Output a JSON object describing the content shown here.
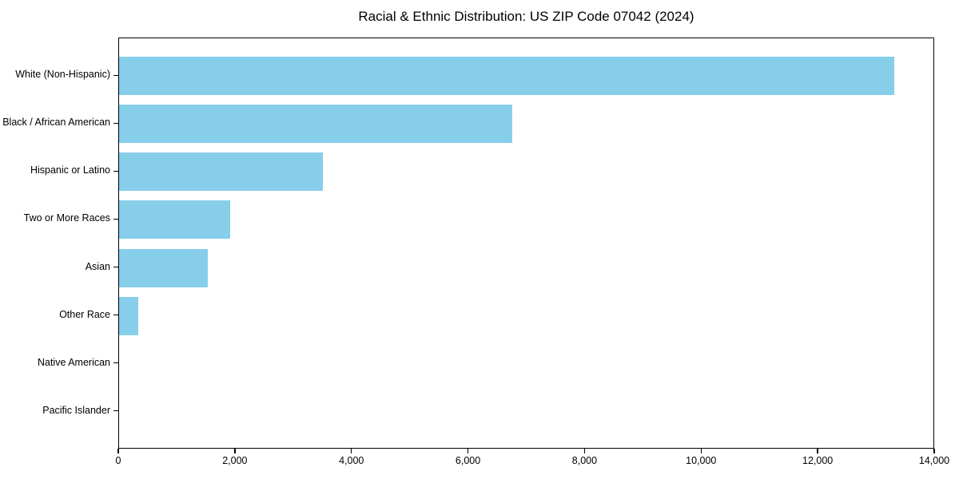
{
  "title": "Racial & Ethnic Distribution: US ZIP Code 07042 (2024)",
  "chart_data": {
    "type": "bar",
    "orientation": "horizontal",
    "title": "Racial & Ethnic Distribution: US ZIP Code 07042 (2024)",
    "categories": [
      "White (Non-Hispanic)",
      "Black / African American",
      "Hispanic or Latino",
      "Two or More Races",
      "Asian",
      "Other Race",
      "Native American",
      "Pacific Islander"
    ],
    "values": [
      13300,
      6750,
      3500,
      1900,
      1520,
      330,
      0,
      0
    ],
    "xlabel": "",
    "ylabel": "",
    "xlim": [
      0,
      14000
    ],
    "xticks": [
      0,
      2000,
      4000,
      6000,
      8000,
      10000,
      12000,
      14000
    ],
    "xtick_labels": [
      "0",
      "2,000",
      "4,000",
      "6,000",
      "8,000",
      "10,000",
      "12,000",
      "14,000"
    ],
    "bar_color": "#87CEEB",
    "grid": false,
    "legend": null
  },
  "colors": {
    "bar": "#87CEEB",
    "text": "#000000",
    "spine": "#000000",
    "background": "#ffffff"
  }
}
